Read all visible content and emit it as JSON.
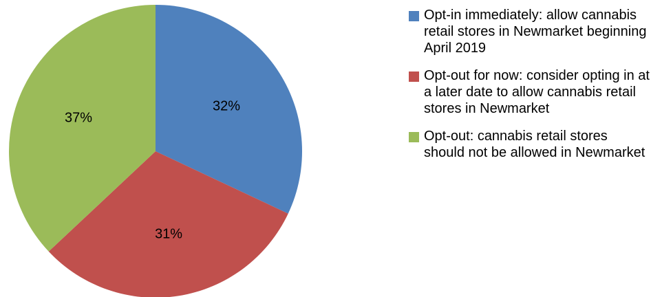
{
  "chart_data": {
    "type": "pie",
    "title": "",
    "legend_position": "right",
    "slices": [
      {
        "name": "Opt-in immediately: allow cannabis retail stores in Newmarket beginning April 2019",
        "value": 32,
        "label": "32%",
        "color": "#4f81bd"
      },
      {
        "name": "Opt-out for now: consider opting in at a later date to allow cannabis retail stores in Newmarket",
        "value": 31,
        "label": "31%",
        "color": "#c0504d"
      },
      {
        "name": "Opt-out: cannabis retail stores should not be allowed in Newmarket",
        "value": 37,
        "label": "37%",
        "color": "#9bbb59"
      }
    ]
  }
}
